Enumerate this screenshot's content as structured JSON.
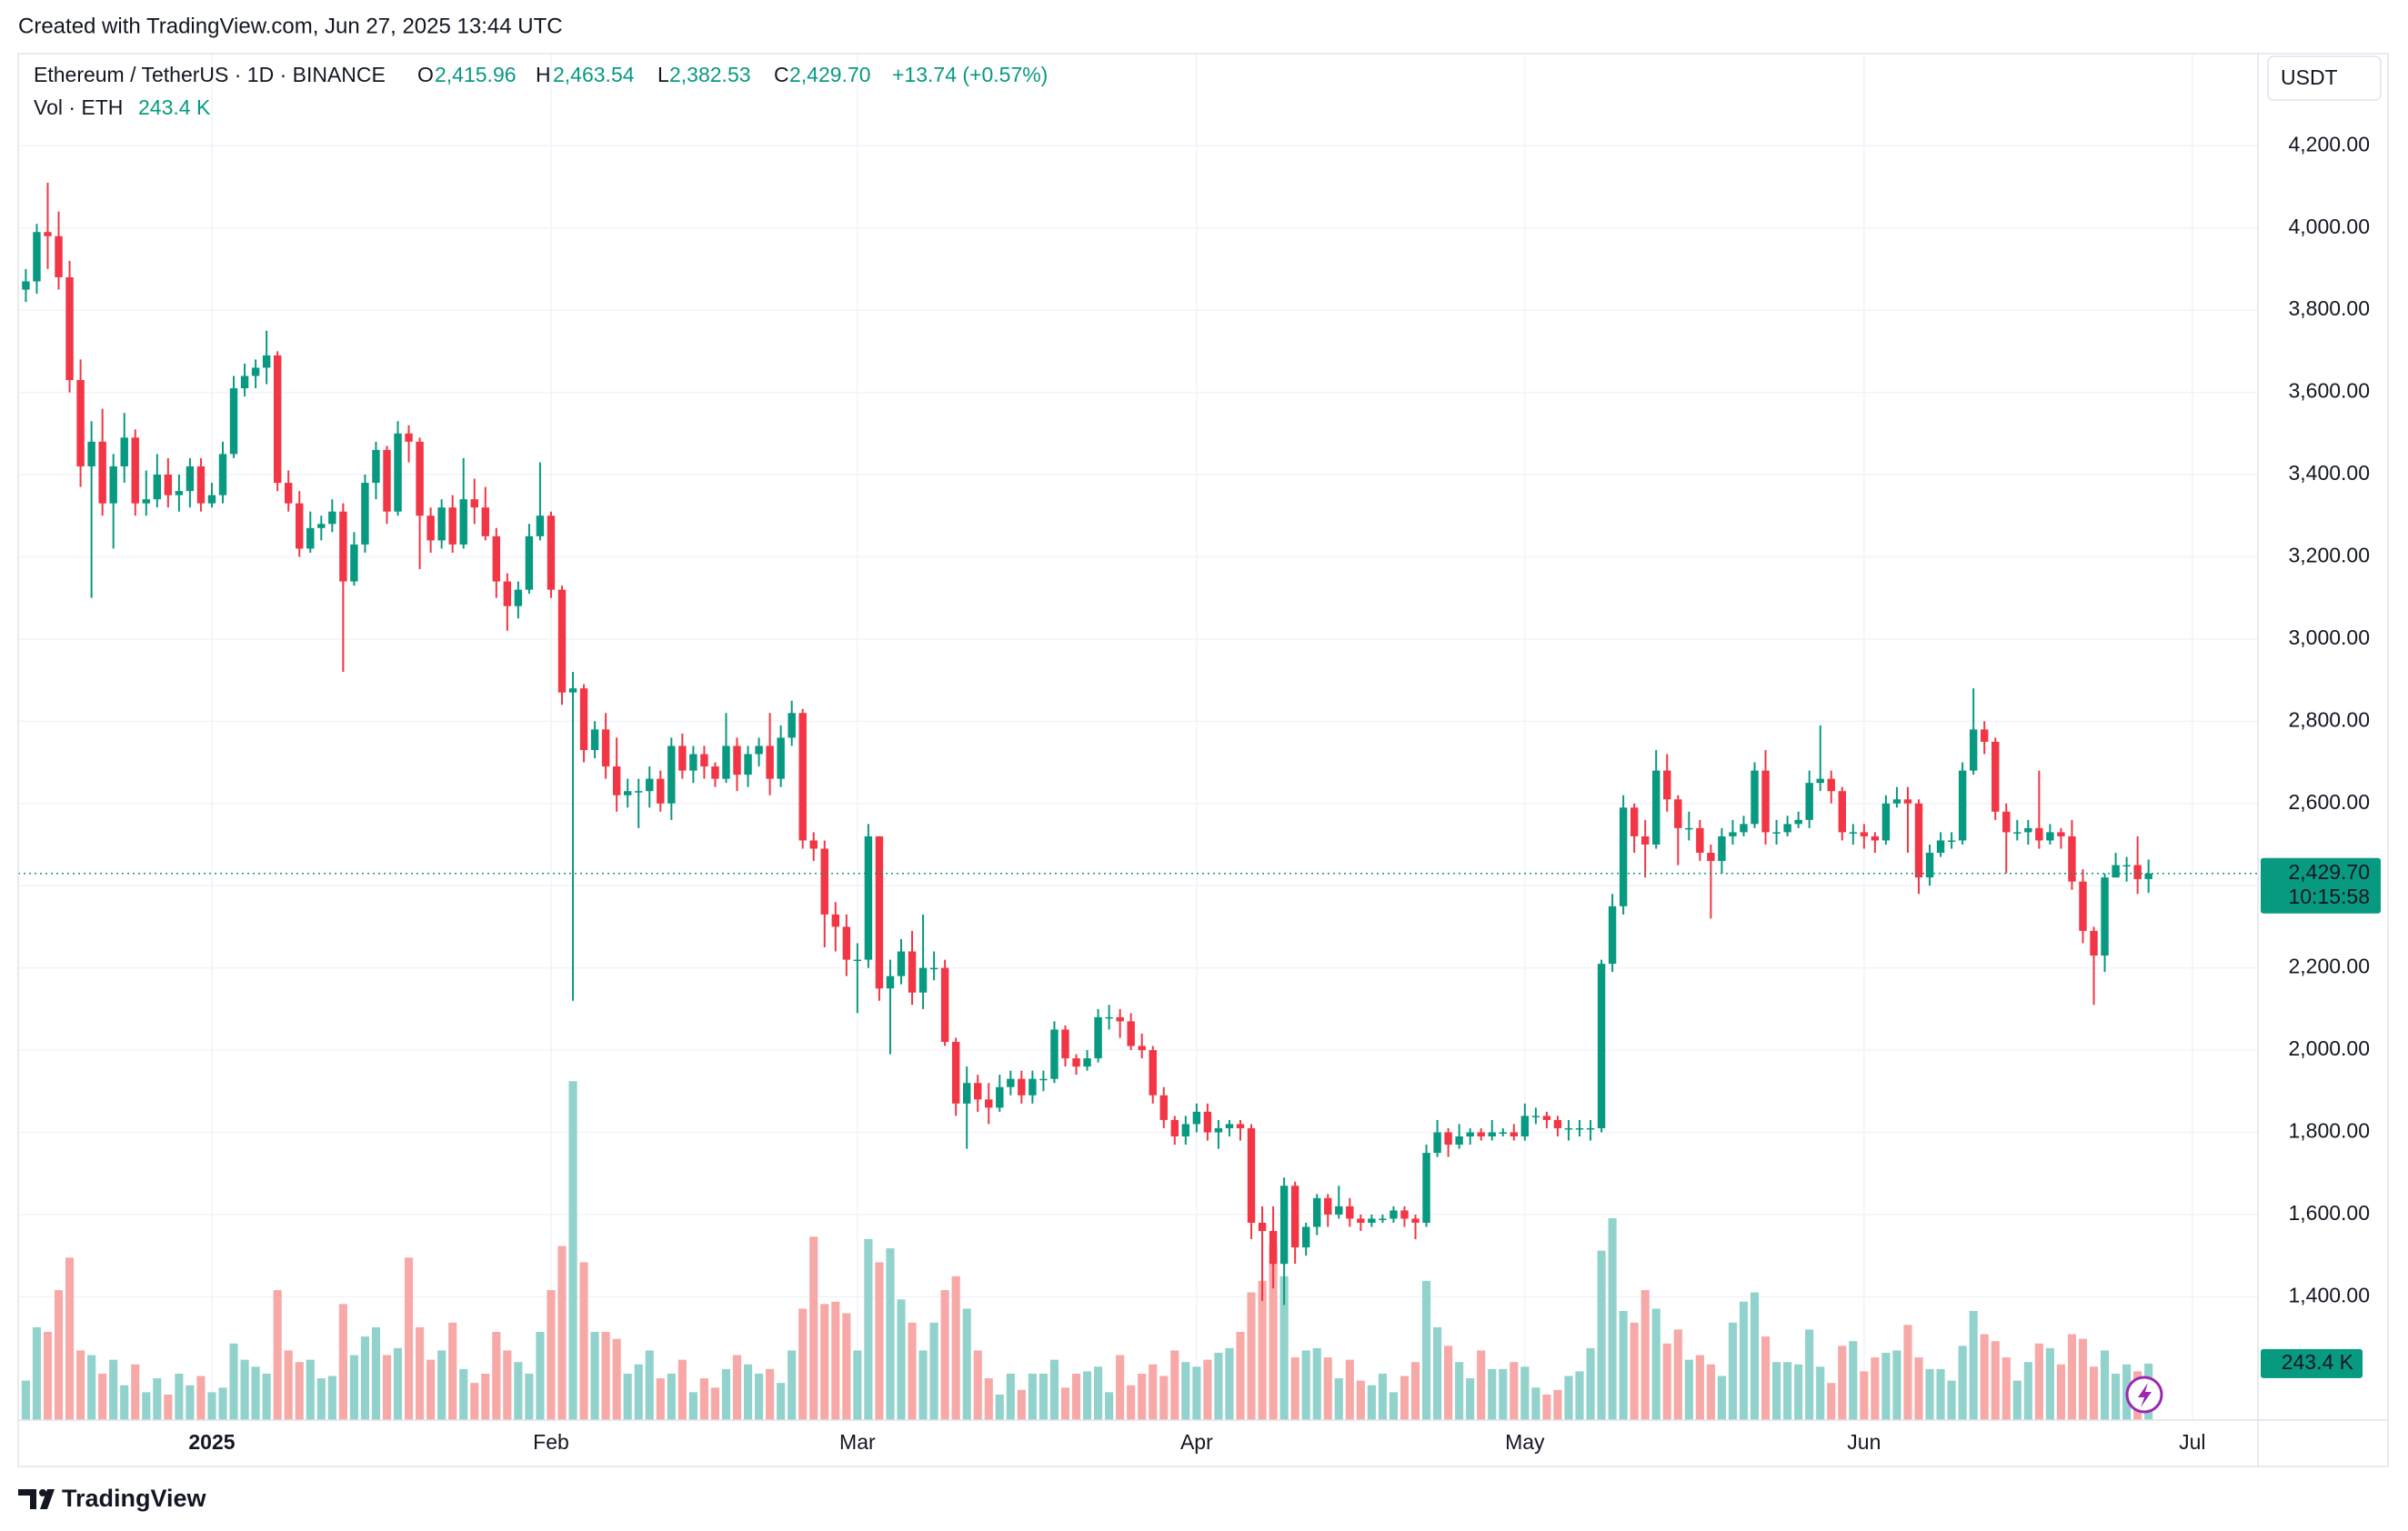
{
  "header": {
    "watermark": "Created with TradingView.com, Jun 27, 2025 13:44 UTC",
    "footer": "TradingView"
  },
  "chart_data": {
    "type": "candlestick",
    "legend": {
      "symbol": "Ethereum / TetherUS · 1D · BINANCE",
      "open_key": "O",
      "open_label": "2,415.96",
      "high_key": "H",
      "high_label": "2,463.54",
      "low_key": "L",
      "low_label": "2,382.53",
      "close_key": "C",
      "close_label": "2,429.70",
      "change": "+13.74 (+0.57%)",
      "volume_title": "Vol · ETH",
      "volume_label": "243.4 K"
    },
    "currency": "USDT",
    "last_price_label": "2,429.70",
    "countdown": "10:15:58",
    "volume_value_label": "243.4 K",
    "colors": {
      "up": "#089981",
      "down": "#f23645",
      "volume_up": "#92d2cc",
      "volume_down": "#f7a9a7"
    },
    "xlim": [
      -0.7,
      204
    ],
    "xticks": [
      {
        "value": 17,
        "label": "2025"
      },
      {
        "value": 48,
        "label": "Feb"
      },
      {
        "value": 76,
        "label": "Mar"
      },
      {
        "value": 107,
        "label": "Apr"
      },
      {
        "value": 137,
        "label": "May"
      },
      {
        "value": 168,
        "label": "Jun"
      },
      {
        "value": 198,
        "label": "Jul"
      }
    ],
    "ylim": [
      1100,
      4424
    ],
    "yticks": [
      {
        "value": 1400,
        "label": "1,400.00"
      },
      {
        "value": 1600,
        "label": "1,600.00"
      },
      {
        "value": 1800,
        "label": "1,800.00"
      },
      {
        "value": 2000,
        "label": "2,000.00"
      },
      {
        "value": 2200,
        "label": "2,200.00"
      },
      {
        "value": 2400,
        "label": "2,400.00"
      },
      {
        "value": 2600,
        "label": "2,600.00"
      },
      {
        "value": 2800,
        "label": "2,800.00"
      },
      {
        "value": 3000,
        "label": "3,000.00"
      },
      {
        "value": 3200,
        "label": "3,200.00"
      },
      {
        "value": 3400,
        "label": "3,400.00"
      },
      {
        "value": 3600,
        "label": "3,600.00"
      },
      {
        "value": 3800,
        "label": "3,800.00"
      },
      {
        "value": 4000,
        "label": "4,000.00"
      },
      {
        "value": 4200,
        "label": "4,200.00"
      }
    ],
    "grid": true,
    "open": [
      3850,
      3870,
      3990,
      3980,
      3880,
      3630,
      3420,
      3480,
      3330,
      3420,
      3490,
      3330,
      3340,
      3400,
      3350,
      3360,
      3420,
      3330,
      3350,
      3450,
      3610,
      3640,
      3660,
      3690,
      3380,
      3330,
      3220,
      3270,
      3280,
      3310,
      3140,
      3230,
      3380,
      3460,
      3310,
      3500,
      3480,
      3300,
      3240,
      3320,
      3230,
      3340,
      3320,
      3250,
      3140,
      3080,
      3120,
      3250,
      3300,
      3120,
      2870,
      2880,
      2730,
      2780,
      2690,
      2620,
      2630,
      2630,
      2660,
      2600,
      2740,
      2680,
      2720,
      2690,
      2660,
      2740,
      2670,
      2720,
      2740,
      2660,
      2760,
      2820,
      2510,
      2490,
      2330,
      2300,
      2220,
      2220,
      2520,
      2150,
      2180,
      2240,
      2140,
      2200,
      2200,
      2020,
      1870,
      1920,
      1880,
      1860,
      1910,
      1930,
      1890,
      1930,
      1930,
      2050,
      1980,
      1960,
      1980,
      2080,
      2080,
      2070,
      2010,
      2000,
      1890,
      1830,
      1790,
      1820,
      1850,
      1800,
      1810,
      1820,
      1810,
      1580,
      1560,
      1480,
      1670,
      1520,
      1570,
      1640,
      1600,
      1620,
      1590,
      1580,
      1590,
      1590,
      1610,
      1590,
      1580,
      1750,
      1800,
      1770,
      1790,
      1800,
      1790,
      1800,
      1800,
      1790,
      1840,
      1840,
      1830,
      1810,
      1810,
      1810,
      1810,
      2210,
      2350,
      2590,
      2520,
      2500,
      2680,
      2610,
      2540,
      2540,
      2480,
      2460,
      2520,
      2530,
      2550,
      2680,
      2530,
      2530,
      2550,
      2560,
      2650,
      2660,
      2630,
      2530,
      2530,
      2520,
      2510,
      2600,
      2610,
      2600,
      2420,
      2480,
      2510,
      2510,
      2680,
      2780,
      2750,
      2580,
      2530,
      2530,
      2540,
      2510,
      2530,
      2520,
      2410,
      2290,
      2230,
      2420,
      2450,
      2450,
      2415.96
    ],
    "high": [
      3900,
      4010,
      4110,
      4040,
      3920,
      3680,
      3530,
      3560,
      3450,
      3550,
      3510,
      3410,
      3450,
      3440,
      3400,
      3440,
      3440,
      3380,
      3480,
      3640,
      3670,
      3680,
      3750,
      3700,
      3410,
      3360,
      3310,
      3300,
      3340,
      3330,
      3260,
      3400,
      3480,
      3470,
      3530,
      3520,
      3490,
      3320,
      3340,
      3350,
      3440,
      3390,
      3370,
      3270,
      3160,
      3140,
      3280,
      3430,
      3310,
      3130,
      2920,
      2890,
      2800,
      2820,
      2760,
      2660,
      2660,
      2690,
      2680,
      2760,
      2770,
      2740,
      2740,
      2700,
      2820,
      2760,
      2740,
      2760,
      2820,
      2790,
      2850,
      2830,
      2530,
      2510,
      2360,
      2330,
      2260,
      2550,
      2520,
      2220,
      2270,
      2290,
      2330,
      2240,
      2220,
      2030,
      1960,
      1940,
      1920,
      1940,
      1950,
      1950,
      1950,
      1950,
      2070,
      2060,
      1990,
      2000,
      2100,
      2110,
      2100,
      2090,
      2040,
      2010,
      1910,
      1840,
      1840,
      1870,
      1870,
      1830,
      1830,
      1830,
      1820,
      1620,
      1620,
      1690,
      1680,
      1580,
      1650,
      1650,
      1670,
      1640,
      1600,
      1600,
      1600,
      1620,
      1620,
      1600,
      1770,
      1830,
      1810,
      1820,
      1810,
      1810,
      1830,
      1810,
      1820,
      1870,
      1860,
      1850,
      1840,
      1830,
      1830,
      1830,
      2220,
      2380,
      2620,
      2600,
      2560,
      2730,
      2720,
      2620,
      2580,
      2560,
      2500,
      2540,
      2560,
      2570,
      2700,
      2730,
      2560,
      2570,
      2580,
      2680,
      2790,
      2680,
      2640,
      2550,
      2550,
      2530,
      2620,
      2640,
      2640,
      2610,
      2500,
      2530,
      2530,
      2700,
      2880,
      2800,
      2760,
      2600,
      2560,
      2560,
      2680,
      2550,
      2540,
      2560,
      2440,
      2300,
      2430,
      2480,
      2470,
      2520,
      2463.54
    ],
    "low": [
      3820,
      3840,
      3900,
      3850,
      3600,
      3370,
      3100,
      3300,
      3220,
      3380,
      3300,
      3300,
      3320,
      3320,
      3310,
      3320,
      3310,
      3320,
      3330,
      3440,
      3590,
      3610,
      3620,
      3360,
      3310,
      3200,
      3210,
      3240,
      3260,
      2920,
      3130,
      3210,
      3340,
      3280,
      3300,
      3430,
      3170,
      3210,
      3220,
      3210,
      3220,
      3280,
      3240,
      3100,
      3020,
      3050,
      3110,
      3240,
      3100,
      2840,
      2120,
      2700,
      2710,
      2660,
      2580,
      2590,
      2540,
      2590,
      2580,
      2560,
      2660,
      2650,
      2660,
      2640,
      2650,
      2630,
      2640,
      2690,
      2620,
      2640,
      2740,
      2490,
      2460,
      2250,
      2240,
      2180,
      2090,
      2200,
      2120,
      1990,
      2160,
      2110,
      2100,
      2170,
      2010,
      1840,
      1760,
      1850,
      1820,
      1850,
      1890,
      1870,
      1870,
      1900,
      1920,
      1960,
      1940,
      1950,
      1970,
      2050,
      2030,
      2000,
      1980,
      1870,
      1810,
      1770,
      1770,
      1800,
      1780,
      1760,
      1790,
      1780,
      1540,
      1390,
      1420,
      1380,
      1480,
      1500,
      1550,
      1570,
      1590,
      1570,
      1560,
      1570,
      1580,
      1580,
      1570,
      1540,
      1570,
      1740,
      1740,
      1760,
      1770,
      1780,
      1780,
      1790,
      1780,
      1780,
      1820,
      1810,
      1790,
      1780,
      1790,
      1780,
      1800,
      2190,
      2330,
      2480,
      2420,
      2490,
      2580,
      2450,
      2510,
      2460,
      2320,
      2430,
      2500,
      2520,
      2540,
      2500,
      2500,
      2520,
      2540,
      2540,
      2630,
      2600,
      2510,
      2500,
      2490,
      2480,
      2500,
      2590,
      2480,
      2380,
      2400,
      2470,
      2490,
      2500,
      2670,
      2720,
      2560,
      2430,
      2510,
      2500,
      2490,
      2500,
      2490,
      2390,
      2260,
      2110,
      2190,
      2420,
      2410,
      2380,
      2382.53
    ],
    "close": [
      3870,
      3990,
      3980,
      3880,
      3630,
      3420,
      3480,
      3330,
      3420,
      3490,
      3330,
      3340,
      3400,
      3350,
      3360,
      3420,
      3330,
      3350,
      3450,
      3610,
      3640,
      3660,
      3690,
      3380,
      3330,
      3220,
      3270,
      3280,
      3310,
      3140,
      3230,
      3380,
      3460,
      3310,
      3500,
      3480,
      3300,
      3240,
      3320,
      3230,
      3340,
      3320,
      3250,
      3140,
      3080,
      3120,
      3250,
      3300,
      3120,
      2870,
      2880,
      2730,
      2780,
      2690,
      2620,
      2630,
      2630,
      2660,
      2600,
      2740,
      2680,
      2720,
      2690,
      2660,
      2740,
      2670,
      2720,
      2740,
      2660,
      2760,
      2820,
      2510,
      2490,
      2330,
      2300,
      2220,
      2220,
      2520,
      2150,
      2180,
      2240,
      2140,
      2200,
      2200,
      2020,
      1870,
      1920,
      1880,
      1860,
      1910,
      1930,
      1890,
      1930,
      1930,
      2050,
      1980,
      1960,
      1980,
      2080,
      2080,
      2070,
      2010,
      2000,
      1890,
      1830,
      1790,
      1820,
      1850,
      1800,
      1810,
      1820,
      1810,
      1580,
      1560,
      1480,
      1670,
      1520,
      1570,
      1640,
      1600,
      1620,
      1590,
      1580,
      1590,
      1590,
      1610,
      1590,
      1580,
      1750,
      1800,
      1770,
      1790,
      1800,
      1790,
      1800,
      1800,
      1790,
      1840,
      1840,
      1830,
      1810,
      1810,
      1810,
      1810,
      2210,
      2350,
      2590,
      2520,
      2500,
      2680,
      2610,
      2540,
      2540,
      2480,
      2460,
      2520,
      2530,
      2550,
      2680,
      2530,
      2530,
      2550,
      2560,
      2650,
      2660,
      2630,
      2530,
      2530,
      2520,
      2510,
      2600,
      2610,
      2600,
      2420,
      2480,
      2510,
      2510,
      2680,
      2780,
      2750,
      2580,
      2530,
      2530,
      2540,
      2510,
      2530,
      2520,
      2410,
      2290,
      2230,
      2420,
      2450,
      2450,
      2415.96,
      2429.7
    ],
    "volume": [
      170000,
      400000,
      380000,
      560000,
      700000,
      300000,
      280000,
      200000,
      260000,
      150000,
      240000,
      120000,
      180000,
      110000,
      200000,
      150000,
      190000,
      120000,
      140000,
      330000,
      260000,
      230000,
      200000,
      560000,
      300000,
      250000,
      260000,
      180000,
      190000,
      500000,
      280000,
      360000,
      400000,
      280000,
      310000,
      700000,
      400000,
      260000,
      300000,
      420000,
      220000,
      160000,
      200000,
      380000,
      300000,
      250000,
      200000,
      380000,
      560000,
      750000,
      1460000,
      680000,
      380000,
      380000,
      350000,
      200000,
      240000,
      300000,
      180000,
      200000,
      260000,
      120000,
      180000,
      140000,
      220000,
      280000,
      240000,
      200000,
      220000,
      160000,
      300000,
      480000,
      790000,
      500000,
      510000,
      460000,
      300000,
      780000,
      680000,
      740000,
      520000,
      420000,
      300000,
      420000,
      560000,
      620000,
      480000,
      300000,
      180000,
      110000,
      200000,
      130000,
      200000,
      200000,
      260000,
      140000,
      200000,
      210000,
      230000,
      120000,
      280000,
      150000,
      200000,
      240000,
      190000,
      300000,
      250000,
      230000,
      260000,
      290000,
      310000,
      380000,
      550000,
      600000,
      750000,
      620000,
      270000,
      300000,
      310000,
      270000,
      180000,
      260000,
      170000,
      150000,
      200000,
      120000,
      190000,
      250000,
      600000,
      400000,
      320000,
      250000,
      180000,
      300000,
      220000,
      220000,
      250000,
      230000,
      140000,
      110000,
      130000,
      190000,
      210000,
      310000,
      730000,
      870000,
      470000,
      420000,
      560000,
      480000,
      330000,
      390000,
      260000,
      280000,
      240000,
      190000,
      420000,
      510000,
      550000,
      360000,
      250000,
      250000,
      240000,
      390000,
      230000,
      160000,
      320000,
      340000,
      210000,
      270000,
      290000,
      300000,
      410000,
      270000,
      220000,
      220000,
      170000,
      320000,
      470000,
      370000,
      340000,
      270000,
      170000,
      250000,
      330000,
      310000,
      240000,
      370000,
      350000,
      230000,
      300000,
      200000,
      240000,
      210000,
      243400
    ]
  }
}
